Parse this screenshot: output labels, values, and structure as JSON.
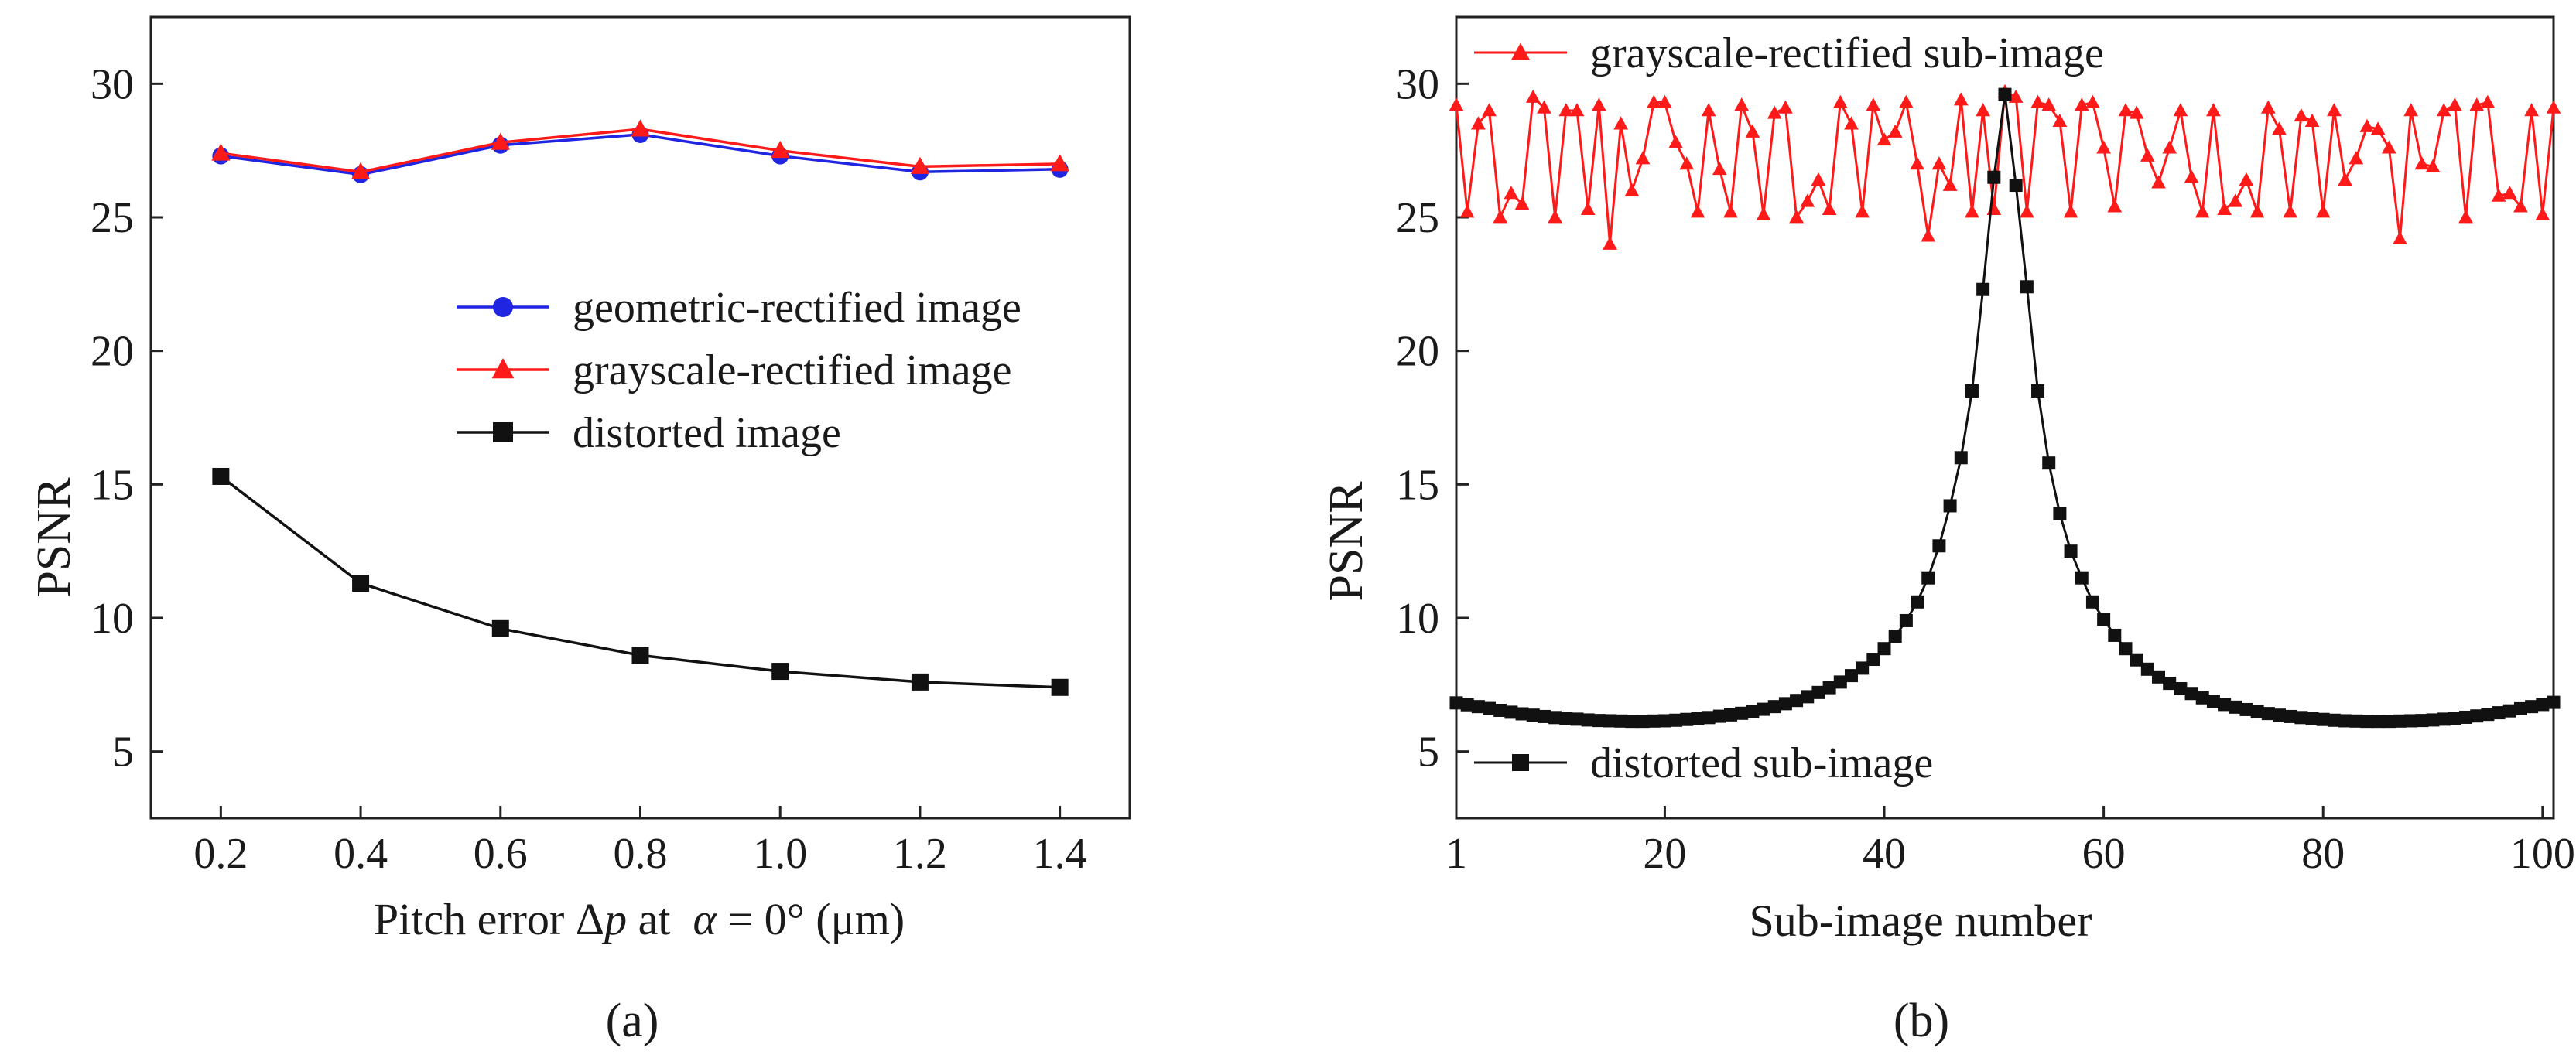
{
  "colors": {
    "blue": "#1f25e0",
    "red": "#ff1a1a",
    "black": "#111111"
  },
  "chart_data": [
    {
      "panel_label": "(a)",
      "type": "line",
      "title": "",
      "ylabel": "PSNR",
      "xlabel_parts": [
        "Pitch error Δ",
        "p",
        " at  ",
        "α",
        " = 0° (μm)"
      ],
      "xlim": [
        0.1,
        1.5
      ],
      "ylim": [
        2.5,
        32.5
      ],
      "x_ticks": [
        0.2,
        0.4,
        0.6,
        0.8,
        1.0,
        1.2,
        1.4
      ],
      "x_tick_labels": [
        "0.2",
        "0.4",
        "0.6",
        "0.8",
        "1.0",
        "1.2",
        "1.4"
      ],
      "y_ticks": [
        5,
        10,
        15,
        20,
        25,
        30
      ],
      "y_tick_labels": [
        "5",
        "10",
        "15",
        "20",
        "25",
        "30"
      ],
      "grid": false,
      "legend_position": "center-right",
      "legend_order": [
        0,
        1,
        2
      ],
      "x": [
        0.2,
        0.4,
        0.6,
        0.8,
        1.0,
        1.2,
        1.4
      ],
      "series": [
        {
          "name": "geometric-rectified image",
          "color": "#1f25e0",
          "marker": "circle",
          "values": [
            27.3,
            26.6,
            27.7,
            28.1,
            27.3,
            26.7,
            26.8
          ]
        },
        {
          "name": "grayscale-rectified image",
          "color": "#ff1a1a",
          "marker": "triangle",
          "values": [
            27.4,
            26.7,
            27.8,
            28.3,
            27.5,
            26.9,
            27.0
          ]
        },
        {
          "name": "distorted  image",
          "color": "#111111",
          "marker": "square",
          "values": [
            15.3,
            11.3,
            9.6,
            8.6,
            8.0,
            7.6,
            7.4
          ]
        }
      ]
    },
    {
      "panel_label": "(b)",
      "type": "line",
      "title": "",
      "ylabel": "PSNR",
      "xlabel_parts": [
        "Sub-image number"
      ],
      "xlim": [
        1,
        101
      ],
      "ylim": [
        2.5,
        32.5
      ],
      "x_ticks": [
        1,
        20,
        40,
        60,
        80,
        100
      ],
      "x_tick_labels": [
        "1",
        "20",
        "40",
        "60",
        "80",
        "100"
      ],
      "y_ticks": [
        5,
        10,
        15,
        20,
        25,
        30
      ],
      "y_tick_labels": [
        "5",
        "10",
        "15",
        "20",
        "25",
        "30"
      ],
      "grid": false,
      "legend_position": "split: top-left and bottom-left",
      "legend_order": [
        0,
        1
      ],
      "x": [
        1,
        2,
        3,
        4,
        5,
        6,
        7,
        8,
        9,
        10,
        11,
        12,
        13,
        14,
        15,
        16,
        17,
        18,
        19,
        20,
        21,
        22,
        23,
        24,
        25,
        26,
        27,
        28,
        29,
        30,
        31,
        32,
        33,
        34,
        35,
        36,
        37,
        38,
        39,
        40,
        41,
        42,
        43,
        44,
        45,
        46,
        47,
        48,
        49,
        50,
        51,
        52,
        53,
        54,
        55,
        56,
        57,
        58,
        59,
        60,
        61,
        62,
        63,
        64,
        65,
        66,
        67,
        68,
        69,
        70,
        71,
        72,
        73,
        74,
        75,
        76,
        77,
        78,
        79,
        80,
        81,
        82,
        83,
        84,
        85,
        86,
        87,
        88,
        89,
        90,
        91,
        92,
        93,
        94,
        95,
        96,
        97,
        98,
        99,
        100,
        101
      ],
      "series": [
        {
          "name": "grayscale-rectified sub-image",
          "color": "#ff1a1a",
          "marker": "triangle",
          "values": [
            29.2,
            25.2,
            28.5,
            29.0,
            25.0,
            25.9,
            25.5,
            29.5,
            29.1,
            25.0,
            29.0,
            29.0,
            25.3,
            29.2,
            24.0,
            28.5,
            26.0,
            27.2,
            29.3,
            29.3,
            27.8,
            27.0,
            25.2,
            29.0,
            26.8,
            25.2,
            29.2,
            28.2,
            25.1,
            28.9,
            29.1,
            25.0,
            25.6,
            26.4,
            25.3,
            29.3,
            28.5,
            25.2,
            29.2,
            27.9,
            28.2,
            29.3,
            27.0,
            24.3,
            27.0,
            26.2,
            29.4,
            25.2,
            29.0,
            25.3,
            29.7,
            29.5,
            25.2,
            29.3,
            29.2,
            28.6,
            25.2,
            29.2,
            29.3,
            27.6,
            25.4,
            29.0,
            28.9,
            27.3,
            26.3,
            27.6,
            29.0,
            26.5,
            25.2,
            29.0,
            25.3,
            25.6,
            26.4,
            25.2,
            29.1,
            28.3,
            25.2,
            28.8,
            28.6,
            25.2,
            29.0,
            26.4,
            27.2,
            28.4,
            28.3,
            27.6,
            24.2,
            29.0,
            27.0,
            26.9,
            29.0,
            29.2,
            25.0,
            29.2,
            29.3,
            25.8,
            25.9,
            25.4,
            29.0,
            25.1,
            29.1
          ]
        },
        {
          "name": "distorted sub-image",
          "color": "#111111",
          "marker": "square",
          "values": [
            6.82,
            6.75,
            6.68,
            6.61,
            6.54,
            6.47,
            6.41,
            6.36,
            6.31,
            6.27,
            6.24,
            6.21,
            6.18,
            6.16,
            6.15,
            6.14,
            6.13,
            6.13,
            6.14,
            6.15,
            6.17,
            6.2,
            6.23,
            6.27,
            6.32,
            6.37,
            6.43,
            6.5,
            6.58,
            6.68,
            6.79,
            6.91,
            7.05,
            7.21,
            7.39,
            7.6,
            7.84,
            8.12,
            8.45,
            8.85,
            9.32,
            9.9,
            10.6,
            11.5,
            12.7,
            14.2,
            16.0,
            18.5,
            22.3,
            26.5,
            29.6,
            26.2,
            22.4,
            18.5,
            15.8,
            13.9,
            12.5,
            11.5,
            10.6,
            9.95,
            9.35,
            8.85,
            8.43,
            8.08,
            7.79,
            7.55,
            7.35,
            7.17,
            7.01,
            6.88,
            6.76,
            6.66,
            6.57,
            6.49,
            6.42,
            6.36,
            6.31,
            6.27,
            6.23,
            6.2,
            6.17,
            6.15,
            6.14,
            6.13,
            6.13,
            6.13,
            6.14,
            6.15,
            6.16,
            6.18,
            6.21,
            6.24,
            6.28,
            6.33,
            6.39,
            6.45,
            6.52,
            6.6,
            6.68,
            6.76,
            6.84
          ]
        }
      ]
    }
  ]
}
